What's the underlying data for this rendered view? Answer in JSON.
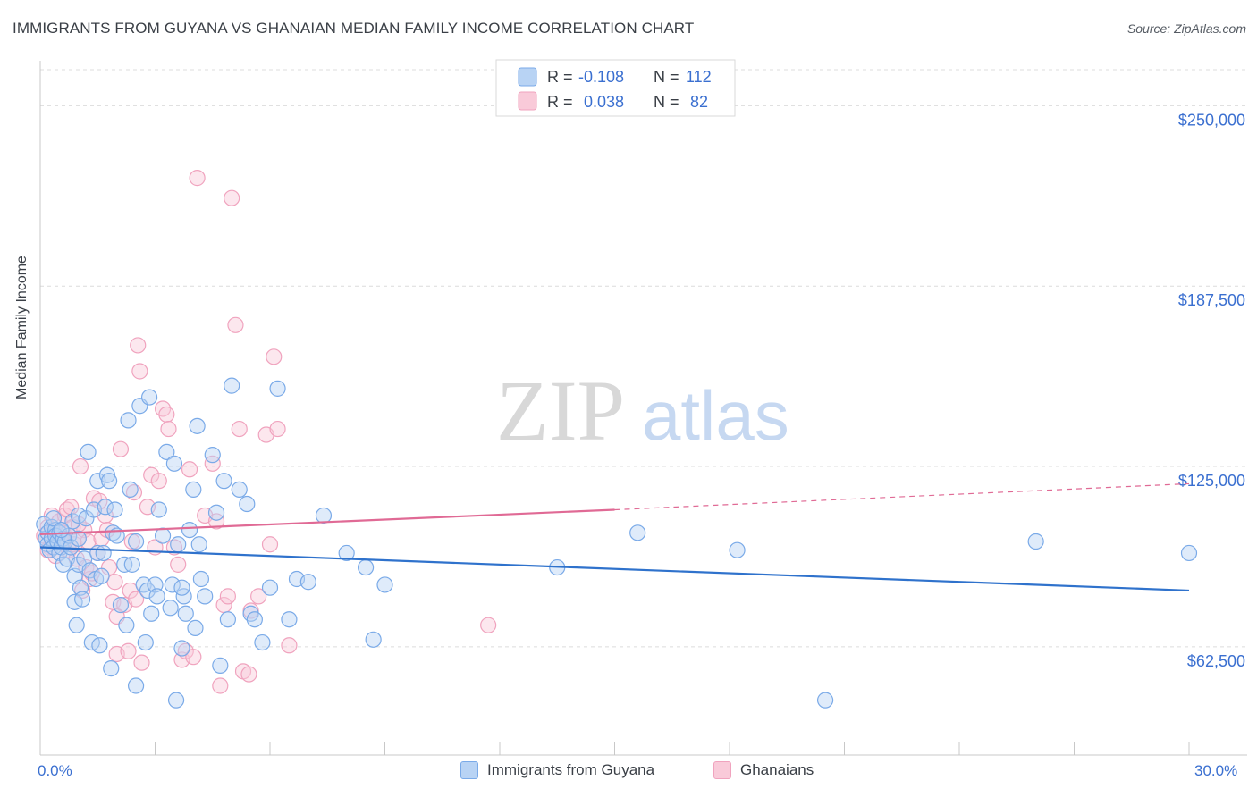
{
  "title": "IMMIGRANTS FROM GUYANA VS GHANAIAN MEDIAN FAMILY INCOME CORRELATION CHART",
  "source": "Source: ZipAtlas.com",
  "watermark": {
    "zip": "ZIP",
    "atlas": "atlas"
  },
  "colors": {
    "blue": "#7aaae8",
    "blue_line": "#2f72cc",
    "blue_fill": "#b8d3f4",
    "pink": "#f0a3be",
    "pink_line": "#e06a95",
    "pink_fill": "#f9cad9",
    "axis_label": "#3a6fd0",
    "grid": "#dcdcdc"
  },
  "legend_top": [
    {
      "r_label": "R =",
      "r_value": "-0.108",
      "n_label": "N =",
      "n_value": "112"
    },
    {
      "r_label": "R =",
      "r_value": "0.038",
      "n_label": "N =",
      "n_value": "82"
    }
  ],
  "chart_data": {
    "type": "scatter",
    "ylabel": "Median Family Income",
    "xlim": [
      0,
      30
    ],
    "ylim": [
      25000,
      262500
    ],
    "x_tick_labels": [
      "0.0%",
      "30.0%"
    ],
    "y_ticks": [
      62500,
      125000,
      187500,
      250000
    ],
    "y_tick_labels": [
      "$62,500",
      "$125,000",
      "$187,500",
      "$250,000"
    ],
    "series": [
      {
        "name": "Immigrants from Guyana",
        "r": -0.108,
        "n": 112,
        "trend": {
          "x0": 0,
          "y0": 97000,
          "x1": 30,
          "y1": 82000
        },
        "points": [
          [
            0.1,
            105000
          ],
          [
            0.15,
            100000
          ],
          [
            0.2,
            102000
          ],
          [
            0.2,
            98000
          ],
          [
            0.25,
            96000
          ],
          [
            0.3,
            104000
          ],
          [
            0.3,
            100000
          ],
          [
            0.35,
            97000
          ],
          [
            0.4,
            103000
          ],
          [
            0.4,
            101000
          ],
          [
            0.45,
            99000
          ],
          [
            0.5,
            95000
          ],
          [
            0.5,
            102000
          ],
          [
            0.55,
            97000
          ],
          [
            0.6,
            91000
          ],
          [
            0.6,
            100000
          ],
          [
            0.65,
            99000
          ],
          [
            0.7,
            93000
          ],
          [
            0.75,
            101000
          ],
          [
            0.8,
            97000
          ],
          [
            0.85,
            106000
          ],
          [
            0.9,
            87000
          ],
          [
            0.9,
            78000
          ],
          [
            0.95,
            70000
          ],
          [
            1.0,
            91000
          ],
          [
            1.0,
            108000
          ],
          [
            1.05,
            83000
          ],
          [
            1.1,
            79000
          ],
          [
            1.15,
            93000
          ],
          [
            1.2,
            107000
          ],
          [
            1.25,
            130000
          ],
          [
            1.3,
            89000
          ],
          [
            1.35,
            64000
          ],
          [
            1.4,
            110000
          ],
          [
            1.45,
            86000
          ],
          [
            1.5,
            95000
          ],
          [
            1.5,
            120000
          ],
          [
            1.55,
            63000
          ],
          [
            1.6,
            87000
          ],
          [
            1.65,
            95000
          ],
          [
            1.7,
            111000
          ],
          [
            1.75,
            122000
          ],
          [
            1.8,
            120000
          ],
          [
            1.85,
            55000
          ],
          [
            1.9,
            102000
          ],
          [
            1.95,
            110000
          ],
          [
            2.0,
            101000
          ],
          [
            2.1,
            77000
          ],
          [
            2.2,
            91000
          ],
          [
            2.25,
            70000
          ],
          [
            2.3,
            141000
          ],
          [
            2.35,
            117000
          ],
          [
            2.4,
            91000
          ],
          [
            2.5,
            49000
          ],
          [
            2.6,
            146000
          ],
          [
            2.7,
            84000
          ],
          [
            2.75,
            64000
          ],
          [
            2.8,
            82000
          ],
          [
            2.85,
            149000
          ],
          [
            2.9,
            74000
          ],
          [
            3.0,
            84000
          ],
          [
            3.05,
            80000
          ],
          [
            3.1,
            110000
          ],
          [
            3.2,
            101000
          ],
          [
            3.3,
            130000
          ],
          [
            3.4,
            76000
          ],
          [
            3.45,
            84000
          ],
          [
            3.5,
            126000
          ],
          [
            3.55,
            44000
          ],
          [
            3.6,
            98000
          ],
          [
            3.7,
            62000
          ],
          [
            3.75,
            80000
          ],
          [
            3.8,
            74000
          ],
          [
            3.9,
            103000
          ],
          [
            4.0,
            117000
          ],
          [
            4.05,
            69000
          ],
          [
            4.1,
            139000
          ],
          [
            4.15,
            98000
          ],
          [
            4.2,
            86000
          ],
          [
            4.3,
            80000
          ],
          [
            4.5,
            129000
          ],
          [
            4.6,
            109000
          ],
          [
            4.7,
            56000
          ],
          [
            4.8,
            120000
          ],
          [
            4.9,
            72000
          ],
          [
            5.0,
            153000
          ],
          [
            5.2,
            117000
          ],
          [
            5.4,
            112000
          ],
          [
            5.5,
            74000
          ],
          [
            5.6,
            72000
          ],
          [
            5.8,
            64000
          ],
          [
            6.0,
            83000
          ],
          [
            6.2,
            152000
          ],
          [
            6.5,
            72000
          ],
          [
            6.7,
            86000
          ],
          [
            7.0,
            85000
          ],
          [
            7.4,
            108000
          ],
          [
            8.0,
            95000
          ],
          [
            8.5,
            90000
          ],
          [
            8.7,
            65000
          ],
          [
            9.0,
            84000
          ],
          [
            13.5,
            90000
          ],
          [
            15.6,
            102000
          ],
          [
            18.2,
            96000
          ],
          [
            20.5,
            44000
          ],
          [
            26.0,
            99000
          ],
          [
            30.0,
            95000
          ],
          [
            0.35,
            107000
          ],
          [
            0.55,
            103000
          ],
          [
            1.0,
            100000
          ],
          [
            2.5,
            99000
          ],
          [
            3.7,
            83000
          ]
        ]
      },
      {
        "name": "Ghanaians",
        "r": 0.038,
        "n": 82,
        "trend": {
          "x0": 0,
          "y0": 101500,
          "x1": 15,
          "y1": 110000,
          "x2": 30,
          "y2": 119000
        },
        "points": [
          [
            0.1,
            101000
          ],
          [
            0.2,
            104000
          ],
          [
            0.25,
            97000
          ],
          [
            0.3,
            108000
          ],
          [
            0.35,
            103000
          ],
          [
            0.4,
            94000
          ],
          [
            0.45,
            100000
          ],
          [
            0.5,
            106000
          ],
          [
            0.55,
            99000
          ],
          [
            0.6,
            102000
          ],
          [
            0.65,
            108000
          ],
          [
            0.7,
            110000
          ],
          [
            0.75,
            96000
          ],
          [
            0.8,
            111000
          ],
          [
            0.85,
            104000
          ],
          [
            0.9,
            98000
          ],
          [
            0.95,
            93000
          ],
          [
            1.0,
            100000
          ],
          [
            1.05,
            125000
          ],
          [
            1.1,
            82000
          ],
          [
            1.15,
            103000
          ],
          [
            1.2,
            90000
          ],
          [
            1.25,
            99000
          ],
          [
            1.3,
            86000
          ],
          [
            1.35,
            88000
          ],
          [
            1.4,
            114000
          ],
          [
            1.5,
            95000
          ],
          [
            1.55,
            113000
          ],
          [
            1.6,
            100000
          ],
          [
            1.7,
            108000
          ],
          [
            1.75,
            103000
          ],
          [
            1.8,
            90000
          ],
          [
            1.9,
            78000
          ],
          [
            1.95,
            85000
          ],
          [
            2.0,
            60000
          ],
          [
            2.1,
            131000
          ],
          [
            2.2,
            77000
          ],
          [
            2.3,
            61000
          ],
          [
            2.35,
            82000
          ],
          [
            2.4,
            99000
          ],
          [
            2.45,
            116000
          ],
          [
            2.5,
            79000
          ],
          [
            2.55,
            167000
          ],
          [
            2.6,
            158000
          ],
          [
            2.65,
            57000
          ],
          [
            2.8,
            111000
          ],
          [
            2.9,
            122000
          ],
          [
            3.0,
            97000
          ],
          [
            3.1,
            120000
          ],
          [
            3.2,
            145000
          ],
          [
            3.3,
            143000
          ],
          [
            3.35,
            138000
          ],
          [
            3.5,
            97000
          ],
          [
            3.6,
            91000
          ],
          [
            3.7,
            58000
          ],
          [
            3.8,
            61000
          ],
          [
            3.9,
            124000
          ],
          [
            4.0,
            59000
          ],
          [
            4.1,
            225000
          ],
          [
            4.3,
            108000
          ],
          [
            4.5,
            126000
          ],
          [
            4.6,
            106000
          ],
          [
            4.7,
            49000
          ],
          [
            4.8,
            77000
          ],
          [
            4.9,
            80000
          ],
          [
            5.0,
            218000
          ],
          [
            5.1,
            174000
          ],
          [
            5.2,
            138000
          ],
          [
            5.3,
            54000
          ],
          [
            5.45,
            53000
          ],
          [
            5.5,
            75000
          ],
          [
            5.7,
            80000
          ],
          [
            5.9,
            136000
          ],
          [
            6.0,
            98000
          ],
          [
            6.1,
            163000
          ],
          [
            6.2,
            138000
          ],
          [
            6.5,
            63000
          ],
          [
            11.7,
            70000
          ],
          [
            0.2,
            96000
          ],
          [
            0.6,
            99000
          ],
          [
            1.0,
            105000
          ],
          [
            2.0,
            73000
          ]
        ]
      }
    ]
  },
  "legend_bottom": [
    {
      "label": "Immigrants from Guyana"
    },
    {
      "label": "Ghanaians"
    }
  ]
}
